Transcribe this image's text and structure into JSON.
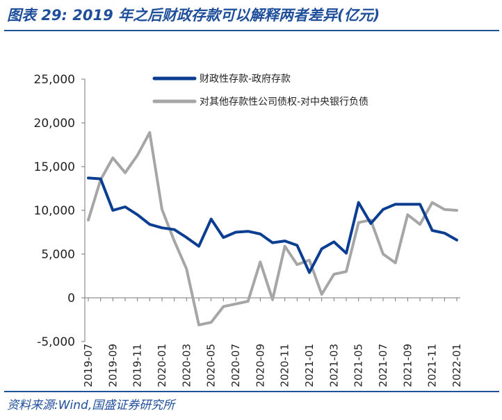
{
  "header": {
    "title": "图表 29: 2019 年之后财政存款可以解释两者差异(亿元)"
  },
  "footer": {
    "source": "资料来源:Wind,国盛证券研究所"
  },
  "chart_data": {
    "type": "line",
    "x": [
      "2019-07",
      "2019-08",
      "2019-09",
      "2019-10",
      "2019-11",
      "2019-12",
      "2020-01",
      "2020-02",
      "2020-03",
      "2020-04",
      "2020-05",
      "2020-06",
      "2020-07",
      "2020-08",
      "2020-09",
      "2020-10",
      "2020-11",
      "2020-12",
      "2021-01",
      "2021-02",
      "2021-03",
      "2021-04",
      "2021-05",
      "2021-06",
      "2021-07",
      "2021-08",
      "2021-09",
      "2021-10",
      "2021-11",
      "2021-12",
      "2022-01"
    ],
    "tick_labels": [
      "2019-07",
      "2019-09",
      "2019-11",
      "2020-01",
      "2020-03",
      "2020-05",
      "2020-07",
      "2020-09",
      "2020-11",
      "2021-01",
      "2021-03",
      "2021-05",
      "2021-07",
      "2021-09",
      "2021-11",
      "2022-01"
    ],
    "ylim": [
      -5000,
      25000
    ],
    "yticks": [
      -5000,
      0,
      5000,
      10000,
      15000,
      20000,
      25000
    ],
    "ytick_labels": [
      "-5,000",
      "0",
      "5,000",
      "10,000",
      "15,000",
      "20,000",
      "25,000"
    ],
    "series": [
      {
        "name": "财政性存款-政府存款",
        "color": "#0b3d91",
        "values": [
          13700,
          13600,
          10000,
          10400,
          9500,
          8400,
          8000,
          7800,
          6900,
          5900,
          9000,
          6900,
          7500,
          7600,
          7300,
          6300,
          6500,
          6000,
          2900,
          5600,
          6400,
          5100,
          10900,
          8500,
          10100,
          10700,
          10700,
          10700,
          7700,
          7400,
          6600
        ]
      },
      {
        "name": "对其他存款性公司债权-对中央银行负债",
        "color": "#a6a6a6",
        "values": [
          8900,
          13500,
          16000,
          14300,
          16300,
          18900,
          10100,
          6500,
          3300,
          -3100,
          -2800,
          -1000,
          -700,
          -400,
          4100,
          -200,
          5900,
          3800,
          4300,
          400,
          2700,
          3000,
          8600,
          8900,
          5000,
          4000,
          9500,
          8400,
          10900,
          10100,
          10000
        ]
      }
    ]
  }
}
